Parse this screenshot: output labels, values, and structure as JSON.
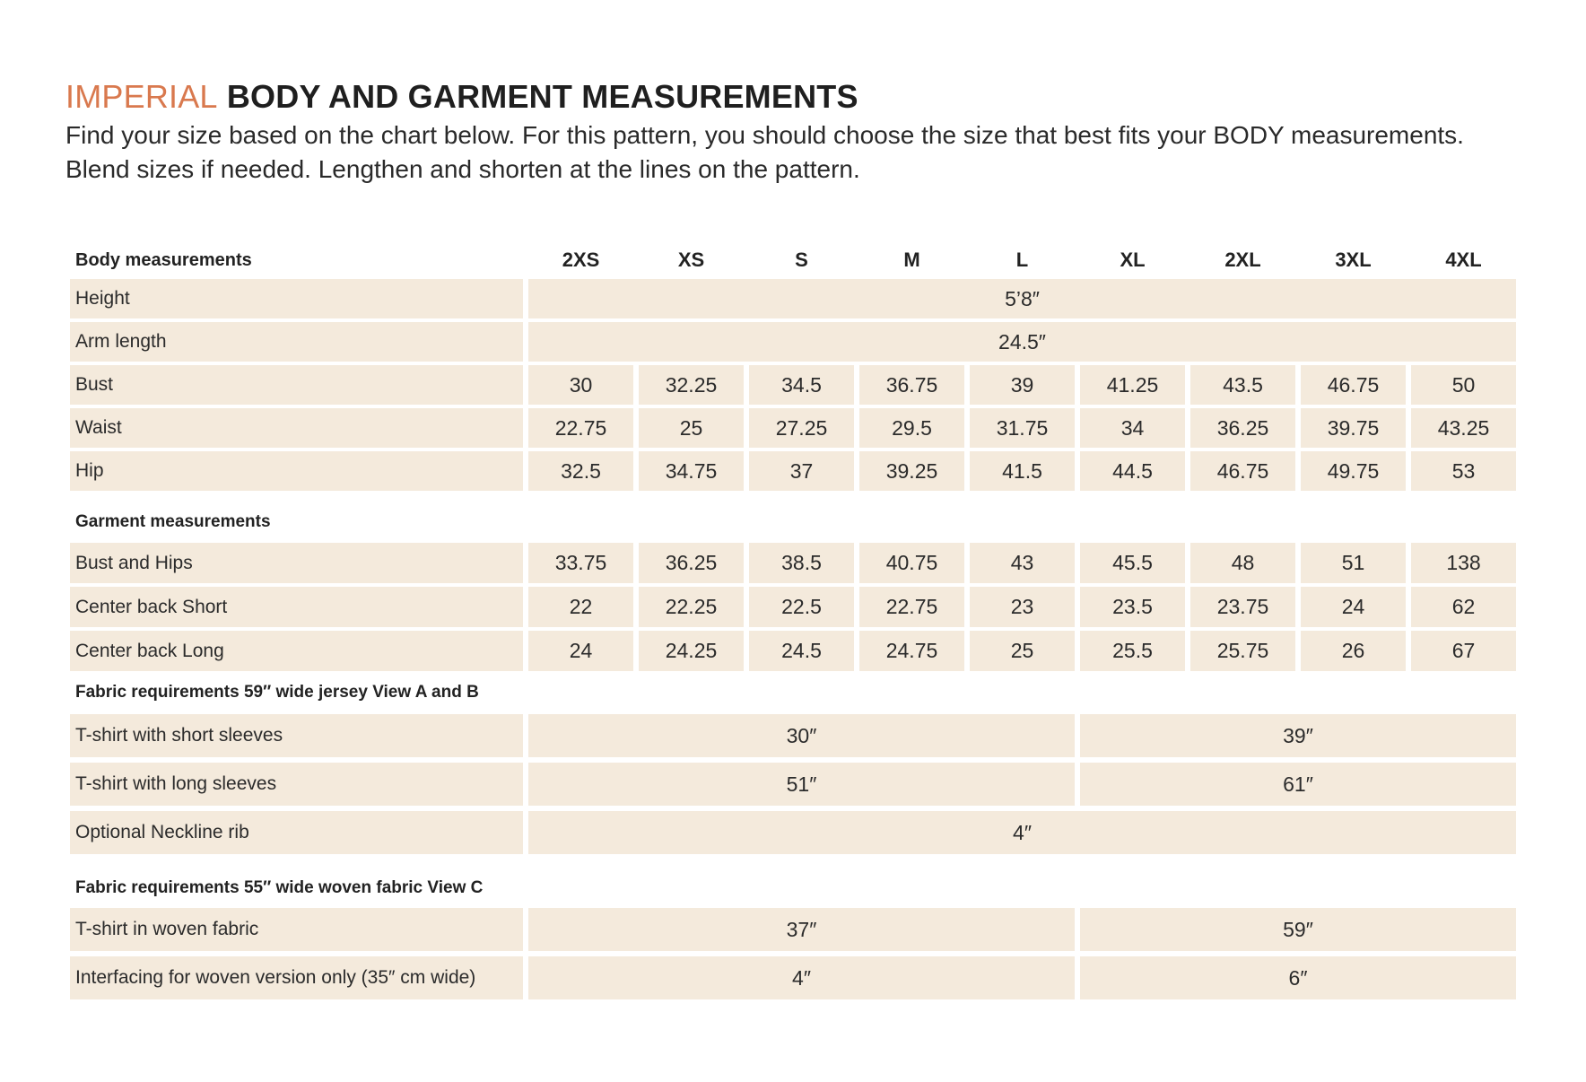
{
  "title": {
    "accent": "IMPERIAL",
    "rest": "BODY AND GARMENT MEASUREMENTS"
  },
  "intro": "Find your size based on the chart below. For this pattern, you should choose the size that best fits your BODY measurements. Blend sizes if needed. Lengthen and shorten at the lines on the pattern.",
  "header": {
    "label": "Body measurements",
    "sizes": [
      "2XS",
      "XS",
      "S",
      "M",
      "L",
      "XL",
      "2XL",
      "3XL",
      "4XL"
    ]
  },
  "body_rows": [
    {
      "label": "Height",
      "span_all": "5’8″"
    },
    {
      "label": "Arm length",
      "span_all": "24.5″"
    },
    {
      "label": "Bust",
      "values": [
        "30",
        "32.25",
        "34.5",
        "36.75",
        "39",
        "41.25",
        "43.5",
        "46.75",
        "50"
      ]
    },
    {
      "label": "Waist",
      "values": [
        "22.75",
        "25",
        "27.25",
        "29.5",
        "31.75",
        "34",
        "36.25",
        "39.75",
        "43.25"
      ]
    },
    {
      "label": "Hip",
      "values": [
        "32.5",
        "34.75",
        "37",
        "39.25",
        "41.5",
        "44.5",
        "46.75",
        "49.75",
        "53"
      ]
    }
  ],
  "garment_section": "Garment measurements",
  "garment_rows": [
    {
      "label": "Bust and Hips",
      "values": [
        "33.75",
        "36.25",
        "38.5",
        "40.75",
        "43",
        "45.5",
        "48",
        "51",
        "138"
      ]
    },
    {
      "label": "Center back Short",
      "values": [
        "22",
        "22.25",
        "22.5",
        "22.75",
        "23",
        "23.5",
        "23.75",
        "24",
        "62"
      ]
    },
    {
      "label": "Center back Long",
      "values": [
        "24",
        "24.25",
        "24.5",
        "24.75",
        "25",
        "25.5",
        "25.75",
        "26",
        "67"
      ]
    }
  ],
  "fabric_a_section": "Fabric requirements 59″ wide jersey View A and B",
  "fabric_a_rows": [
    {
      "label": "T-shirt with short sleeves",
      "left": "30″",
      "right": "39″"
    },
    {
      "label": "T-shirt with long sleeves",
      "left": "51″",
      "right": "61″"
    },
    {
      "label": "Optional Neckline rib",
      "span_all": "4″"
    }
  ],
  "fabric_c_section": "Fabric requirements 55″  wide woven fabric View C",
  "fabric_c_rows": [
    {
      "label": "T-shirt in woven fabric",
      "left": "37″",
      "right": "59″"
    },
    {
      "label": "Interfacing for woven version only (35″ cm wide)",
      "left": "4″",
      "right": "6″"
    }
  ],
  "colors": {
    "accent": "#d9794e",
    "cell_bg": "#f4eadc",
    "text": "#222222"
  }
}
